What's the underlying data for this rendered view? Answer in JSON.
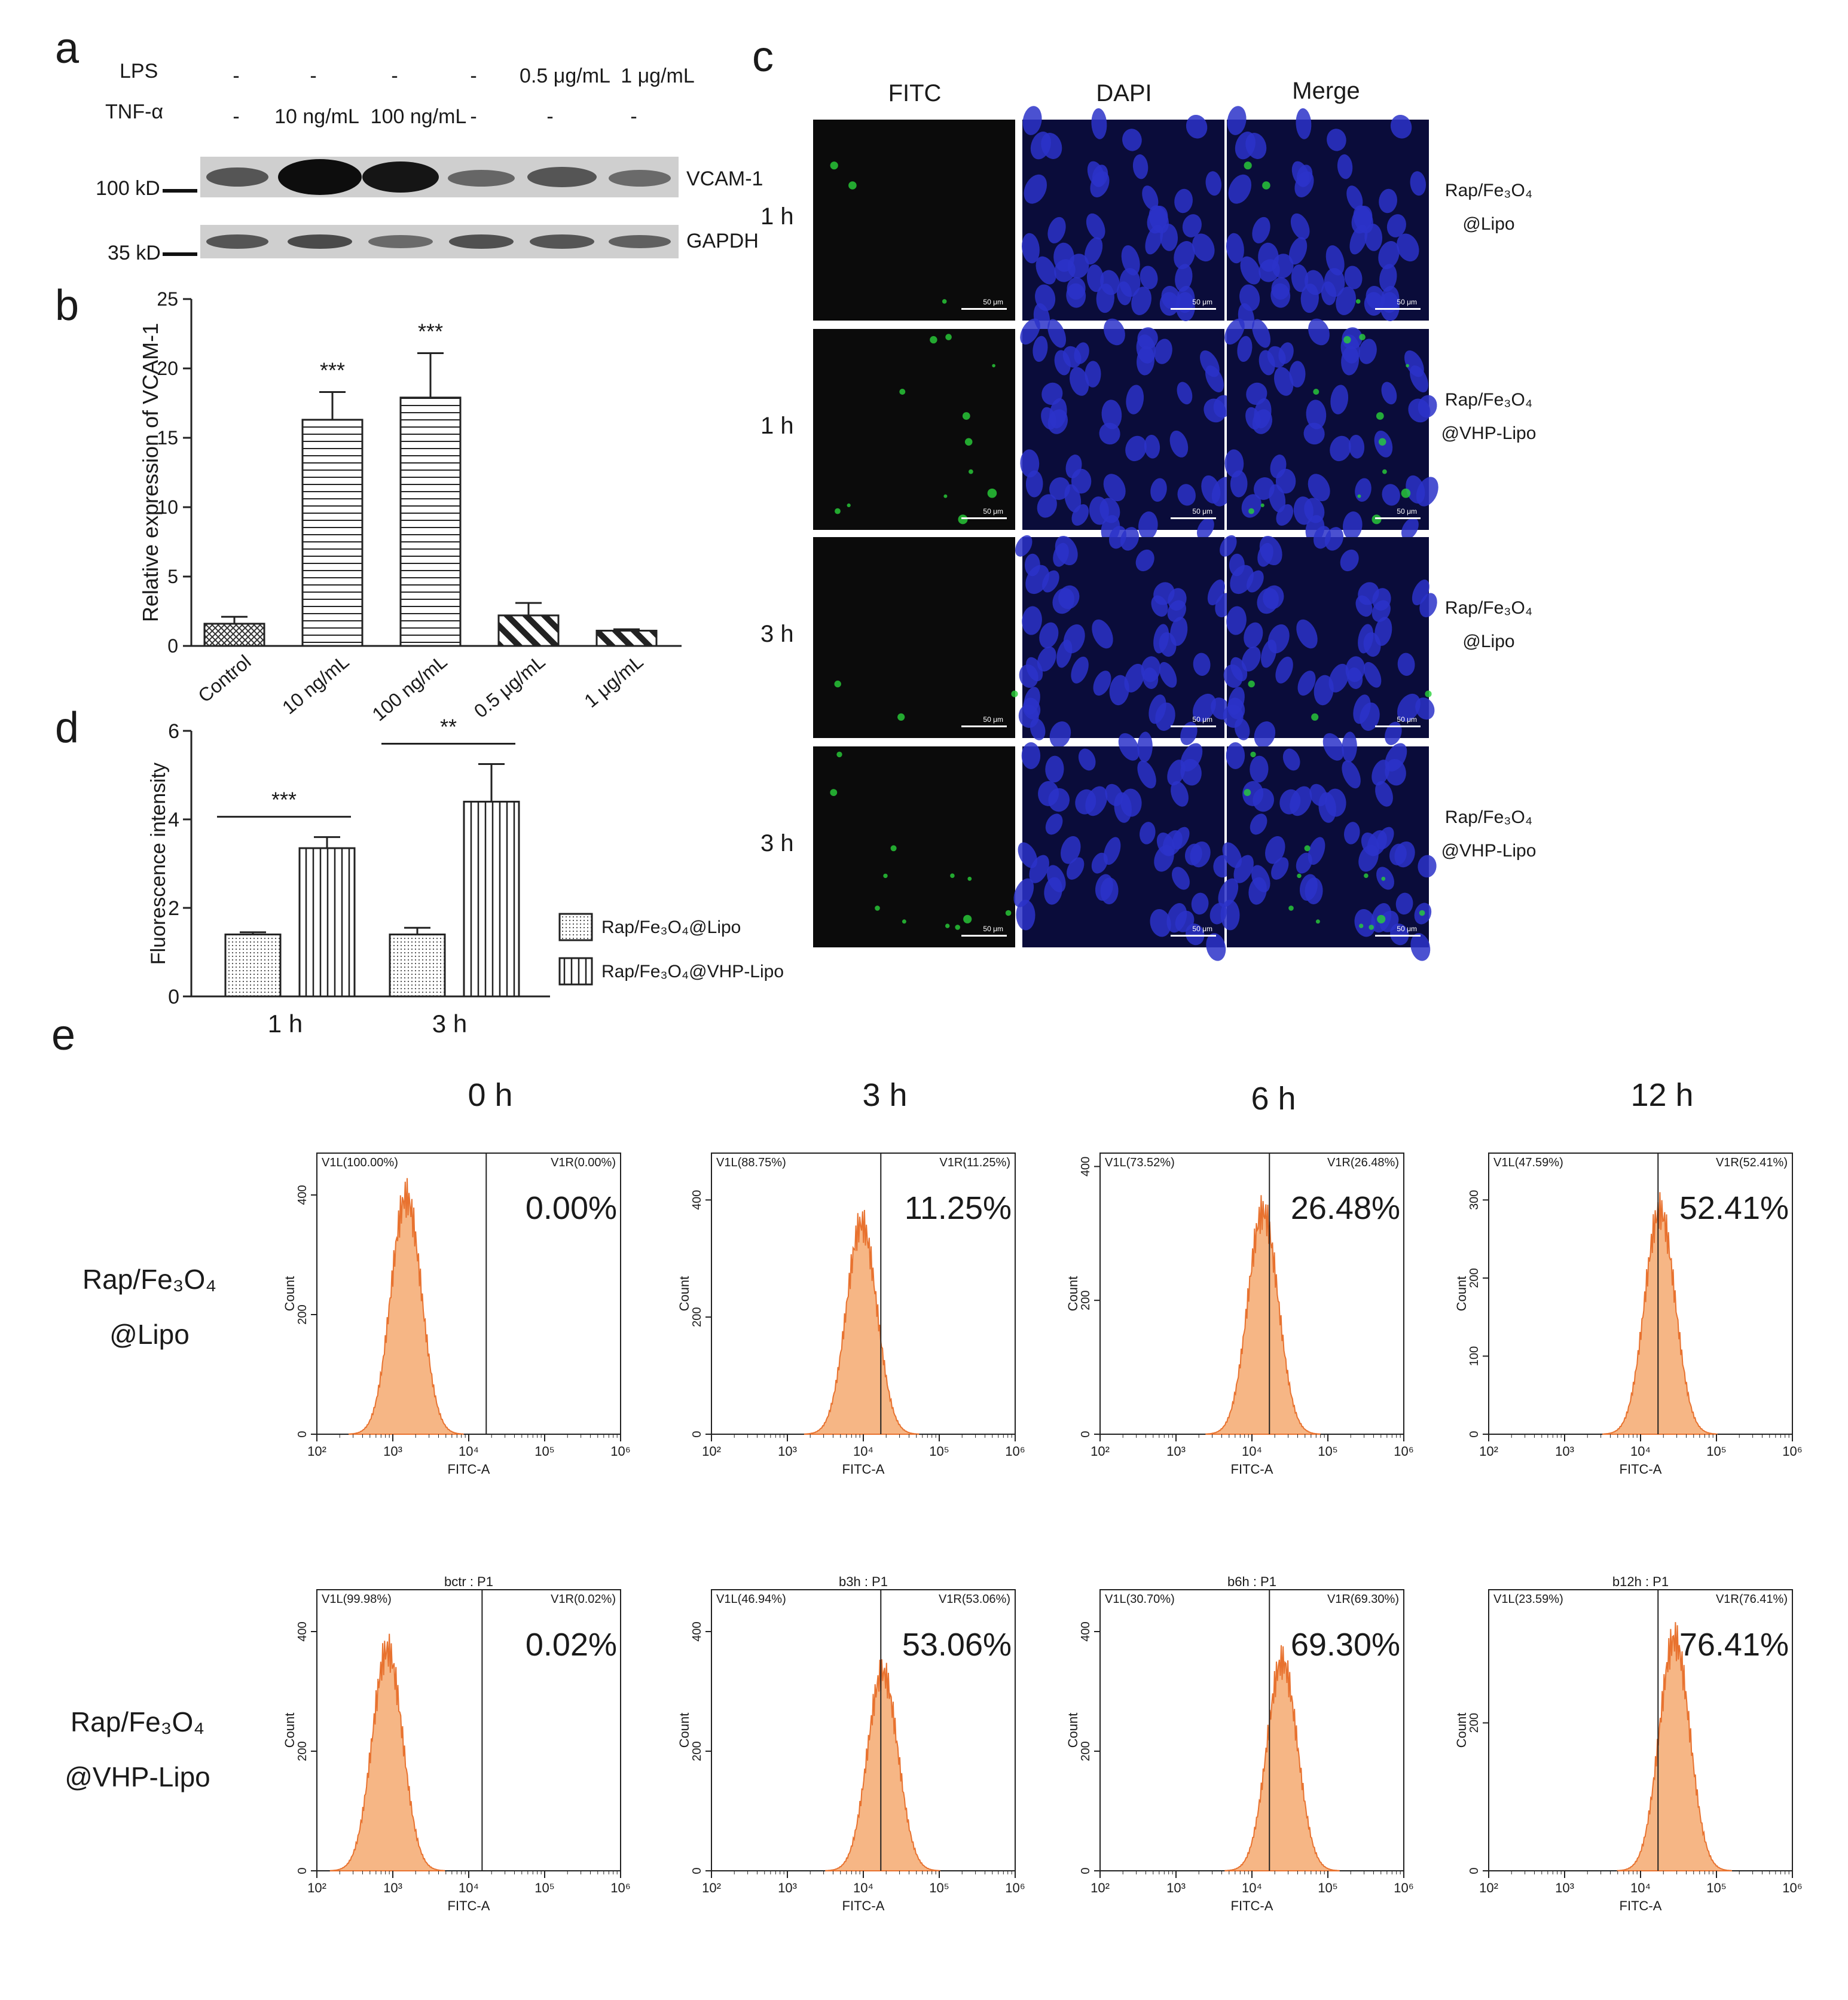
{
  "panel_letters": {
    "a": "a",
    "b": "b",
    "c": "c",
    "d": "d",
    "e": "e"
  },
  "panel_a": {
    "row_lps": {
      "label": "LPS",
      "cells": [
        "-",
        "-",
        "-",
        "-",
        "0.5 μg/mL",
        "1 μg/mL"
      ]
    },
    "row_tnf": {
      "label": "TNF-α",
      "cells": [
        "-",
        "10 ng/mL",
        "100 ng/mL",
        "-",
        "-",
        "-"
      ]
    },
    "bands": [
      {
        "name": "VCAM-1",
        "marker": "100 kD"
      },
      {
        "name": "GAPDH",
        "marker": "35 kD"
      }
    ]
  },
  "panel_c": {
    "columns": [
      "FITC",
      "DAPI",
      "Merge"
    ],
    "rows": [
      {
        "time": "1 h",
        "group_line1": "Rap/Fe₃O₄",
        "group_line2": "@Lipo"
      },
      {
        "time": "1 h",
        "group_line1": "Rap/Fe₃O₄",
        "group_line2": "@VHP-Lipo"
      },
      {
        "time": "3 h",
        "group_line1": "Rap/Fe₃O₄",
        "group_line2": "@Lipo"
      },
      {
        "time": "3 h",
        "group_line1": "Rap/Fe₃O₄",
        "group_line2": "@VHP-Lipo"
      }
    ],
    "scale_text": "50 μm"
  },
  "panel_e": {
    "time_headers": [
      "0 h",
      "3 h",
      "6 h",
      "12 h"
    ],
    "row_labels": [
      {
        "line1": "Rap/Fe₃O₄",
        "line2": "@Lipo"
      },
      {
        "line1": "Rap/Fe₃O₄",
        "line2": "@VHP-Lipo"
      }
    ],
    "row2_titles": [
      "bctr : P1",
      "b3h : P1",
      "b6h : P1",
      "b12h : P1"
    ],
    "xlabel": "FITC-A",
    "ylabel": "Count"
  },
  "colors": {
    "hist_fill": "#f6b685",
    "hist_edge": "#e8722f",
    "fitc_green": "#29d13a",
    "dapi_blue": "#2c33c9"
  },
  "chart_data": [
    {
      "id": "b",
      "type": "bar",
      "categories": [
        "Control",
        "10 ng/mL",
        "100 ng/mL",
        "0.5 μg/mL",
        "1 μg/mL"
      ],
      "values": [
        1.6,
        16.3,
        17.9,
        2.2,
        1.1
      ],
      "errors": [
        0.5,
        2.0,
        3.2,
        0.9,
        0.1
      ],
      "significance": [
        "",
        "***",
        "***",
        "",
        ""
      ],
      "ylabel": "Relative expression of VCAM-1",
      "ylim": [
        0,
        25
      ],
      "yticks": [
        0,
        5,
        10,
        15,
        20,
        25
      ]
    },
    {
      "id": "d",
      "type": "bar",
      "categories": [
        "1 h",
        "3 h"
      ],
      "series": [
        {
          "name": "Rap/Fe₃O₄@Lipo",
          "values": [
            1.4,
            1.4
          ],
          "errors": [
            0.05,
            0.15
          ]
        },
        {
          "name": "Rap/Fe₃O₄@VHP-Lipo",
          "values": [
            3.35,
            4.4
          ],
          "errors": [
            0.25,
            0.85
          ]
        }
      ],
      "significance": [
        "***",
        "**"
      ],
      "ylabel": "Fluorescence intensity",
      "ylim": [
        0,
        6
      ],
      "yticks": [
        0,
        2,
        4,
        6
      ],
      "legend": "right"
    },
    {
      "id": "e",
      "type": "histogram",
      "x_scale": "log",
      "xlim": [
        100,
        1000000
      ],
      "xticks": [
        "10²",
        "10³",
        "10⁴",
        "10⁵",
        "10⁶"
      ],
      "gate_labels": [
        "V1L",
        "V1R"
      ],
      "plots": [
        {
          "row": 1,
          "time": "0 h",
          "v1l": "V1L(100.00%)",
          "v1r": "V1R(0.00%)",
          "big": "0.00%",
          "gate": 17000,
          "peak": 1500,
          "yticks": [
            0,
            200,
            400
          ],
          "ymax": 470,
          "peak_count": 430
        },
        {
          "row": 1,
          "time": "3 h",
          "v1l": "V1L(88.75%)",
          "v1r": "V1R(11.25%)",
          "big": "11.25%",
          "gate": 17000,
          "peak": 9500,
          "yticks": [
            0,
            200,
            400
          ],
          "ymax": 480,
          "peak_count": 390
        },
        {
          "row": 1,
          "time": "6 h",
          "v1l": "V1L(73.52%)",
          "v1r": "V1R(26.48%)",
          "big": "26.48%",
          "gate": 17000,
          "peak": 14000,
          "yticks": [
            0,
            200,
            400
          ],
          "ymax": 420,
          "peak_count": 360
        },
        {
          "row": 1,
          "time": "12 h",
          "v1l": "V1L(47.59%)",
          "v1r": "V1R(52.41%)",
          "big": "52.41%",
          "gate": 17000,
          "peak": 18000,
          "yticks": [
            0,
            100,
            200,
            300
          ],
          "ymax": 360,
          "peak_count": 310
        },
        {
          "row": 2,
          "time": "0 h",
          "v1l": "V1L(99.98%)",
          "v1r": "V1R(0.02%)",
          "big": "0.02%",
          "gate": 15000,
          "peak": 850,
          "yticks": [
            0,
            200,
            400
          ],
          "ymax": 470,
          "peak_count": 400
        },
        {
          "row": 2,
          "time": "3 h",
          "v1l": "V1L(46.94%)",
          "v1r": "V1R(53.06%)",
          "big": "53.06%",
          "gate": 17000,
          "peak": 18000,
          "yticks": [
            0,
            200,
            400
          ],
          "ymax": 470,
          "peak_count": 360
        },
        {
          "row": 2,
          "time": "6 h",
          "v1l": "V1L(30.70%)",
          "v1r": "V1R(69.30%)",
          "big": "69.30%",
          "gate": 17000,
          "peak": 25000,
          "yticks": [
            0,
            200,
            400
          ],
          "ymax": 470,
          "peak_count": 380
        },
        {
          "row": 2,
          "time": "12 h",
          "v1l": "V1L(23.59%)",
          "v1r": "V1R(76.41%)",
          "big": "76.41%",
          "gate": 17000,
          "peak": 28000,
          "yticks": [
            0,
            200
          ],
          "ymax": 380,
          "peak_count": 340
        }
      ]
    }
  ]
}
